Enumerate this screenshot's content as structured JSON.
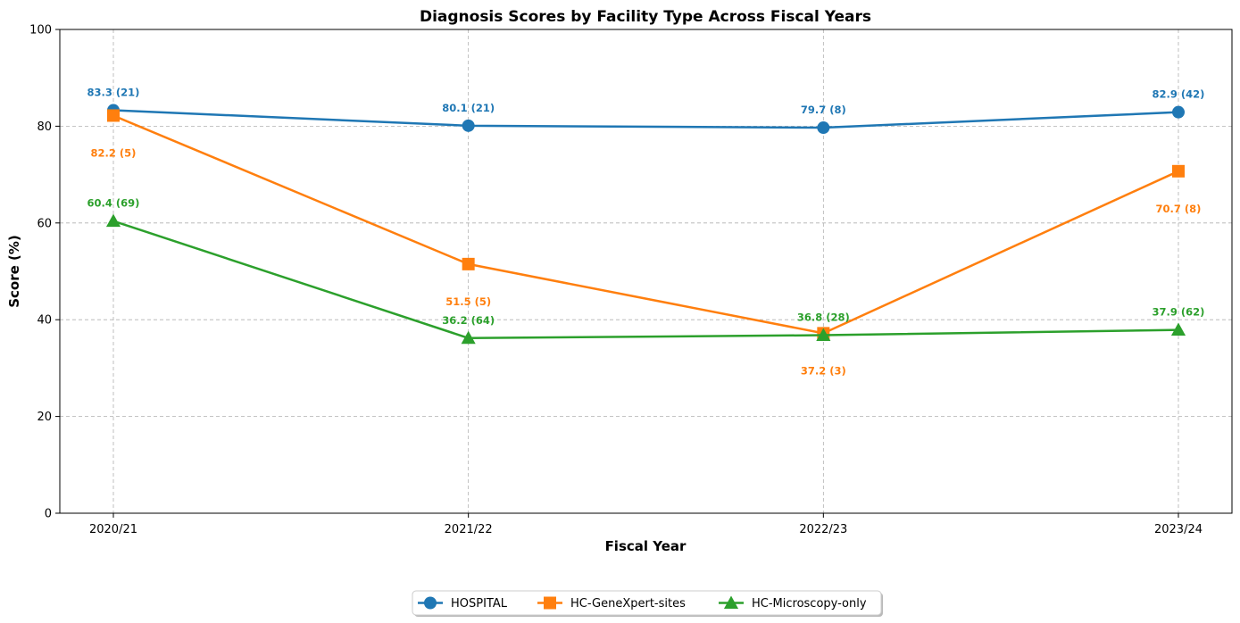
{
  "chart_data": {
    "type": "line",
    "title": "Diagnosis Scores by Facility Type Across Fiscal Years",
    "xlabel": "Fiscal Year",
    "ylabel": "Score (%)",
    "categories": [
      "2020/21",
      "2021/22",
      "2022/23",
      "2023/24"
    ],
    "ylim": [
      0,
      100
    ],
    "yticks": [
      0,
      20,
      40,
      60,
      80,
      100
    ],
    "grid": true,
    "legend_position": "bottom-center",
    "series": [
      {
        "name": "HOSPITAL",
        "color": "#1f77b4",
        "marker": "circle",
        "values": [
          83.3,
          80.1,
          79.7,
          82.9
        ],
        "labels": [
          "83.3 (21)",
          "80.1 (21)",
          "79.7 (8)",
          "82.9 (42)"
        ],
        "label_placement": [
          "above",
          "above",
          "above",
          "above"
        ]
      },
      {
        "name": "HC-GeneXpert-sites",
        "color": "#ff7f0e",
        "marker": "square",
        "values": [
          82.2,
          51.5,
          37.2,
          70.7
        ],
        "labels": [
          "82.2 (5)",
          "51.5 (5)",
          "37.2 (3)",
          "70.7 (8)"
        ],
        "label_placement": [
          "below",
          "below",
          "below",
          "below"
        ]
      },
      {
        "name": "HC-Microscopy-only",
        "color": "#2ca02c",
        "marker": "triangle",
        "values": [
          60.4,
          36.2,
          36.8,
          37.9
        ],
        "labels": [
          "60.4 (69)",
          "36.2 (64)",
          "36.8 (28)",
          "37.9 (62)"
        ],
        "label_placement": [
          "above",
          "above",
          "above",
          "above"
        ]
      }
    ]
  }
}
